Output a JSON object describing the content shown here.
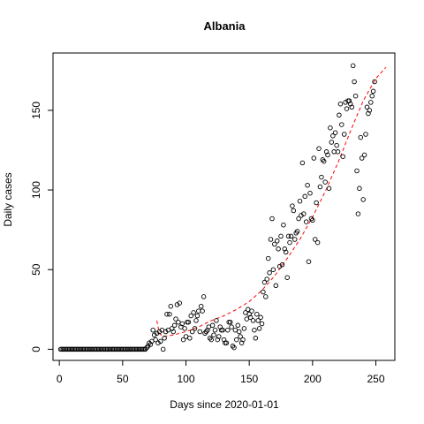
{
  "chart_data": {
    "type": "scatter",
    "title": "Albania",
    "xlabel": "Days since 2020-01-01",
    "ylabel": "Daily cases",
    "xlim": [
      -5,
      265
    ],
    "ylim": [
      -7,
      186
    ],
    "xticks": [
      0,
      50,
      100,
      150,
      200,
      250
    ],
    "yticks": [
      0,
      50,
      100,
      150
    ],
    "grid": false,
    "legend": "none",
    "point_color": "#000000",
    "trend_color": "#ff0000",
    "points": [
      [
        1,
        0
      ],
      [
        2,
        0
      ],
      [
        3,
        0
      ],
      [
        4,
        0
      ],
      [
        5,
        0
      ],
      [
        6,
        0
      ],
      [
        7,
        0
      ],
      [
        8,
        0
      ],
      [
        9,
        0
      ],
      [
        10,
        0
      ],
      [
        11,
        0
      ],
      [
        12,
        0
      ],
      [
        13,
        0
      ],
      [
        14,
        0
      ],
      [
        15,
        0
      ],
      [
        16,
        0
      ],
      [
        17,
        0
      ],
      [
        18,
        0
      ],
      [
        19,
        0
      ],
      [
        20,
        0
      ],
      [
        21,
        0
      ],
      [
        22,
        0
      ],
      [
        23,
        0
      ],
      [
        24,
        0
      ],
      [
        25,
        0
      ],
      [
        26,
        0
      ],
      [
        27,
        0
      ],
      [
        28,
        0
      ],
      [
        29,
        0
      ],
      [
        30,
        0
      ],
      [
        31,
        0
      ],
      [
        32,
        0
      ],
      [
        33,
        0
      ],
      [
        34,
        0
      ],
      [
        35,
        0
      ],
      [
        36,
        0
      ],
      [
        37,
        0
      ],
      [
        38,
        0
      ],
      [
        39,
        0
      ],
      [
        40,
        0
      ],
      [
        41,
        0
      ],
      [
        42,
        0
      ],
      [
        43,
        0
      ],
      [
        44,
        0
      ],
      [
        45,
        0
      ],
      [
        46,
        0
      ],
      [
        47,
        0
      ],
      [
        48,
        0
      ],
      [
        49,
        0
      ],
      [
        50,
        0
      ],
      [
        51,
        0
      ],
      [
        52,
        0
      ],
      [
        53,
        0
      ],
      [
        54,
        0
      ],
      [
        55,
        0
      ],
      [
        56,
        0
      ],
      [
        57,
        0
      ],
      [
        58,
        0
      ],
      [
        59,
        0
      ],
      [
        60,
        0
      ],
      [
        61,
        0
      ],
      [
        62,
        0
      ],
      [
        63,
        0
      ],
      [
        64,
        0
      ],
      [
        65,
        0
      ],
      [
        66,
        0
      ],
      [
        67,
        0
      ],
      [
        68,
        0
      ],
      [
        69,
        1
      ],
      [
        70,
        2
      ],
      [
        71,
        4
      ],
      [
        72,
        3
      ],
      [
        73,
        5
      ],
      [
        74,
        12
      ],
      [
        75,
        9
      ],
      [
        76,
        6
      ],
      [
        77,
        10
      ],
      [
        78,
        4
      ],
      [
        79,
        11
      ],
      [
        80,
        5
      ],
      [
        81,
        12
      ],
      [
        82,
        0
      ],
      [
        83,
        7
      ],
      [
        84,
        11
      ],
      [
        85,
        22
      ],
      [
        86,
        12
      ],
      [
        87,
        22
      ],
      [
        88,
        27
      ],
      [
        89,
        13
      ],
      [
        90,
        11
      ],
      [
        91,
        15
      ],
      [
        92,
        19
      ],
      [
        93,
        28
      ],
      [
        94,
        17
      ],
      [
        95,
        29
      ],
      [
        96,
        14
      ],
      [
        97,
        16
      ],
      [
        98,
        6
      ],
      [
        99,
        13
      ],
      [
        100,
        8
      ],
      [
        101,
        17
      ],
      [
        102,
        17
      ],
      [
        103,
        7
      ],
      [
        104,
        21
      ],
      [
        105,
        11
      ],
      [
        106,
        23
      ],
      [
        107,
        13
      ],
      [
        108,
        18
      ],
      [
        109,
        21
      ],
      [
        110,
        24
      ],
      [
        111,
        11
      ],
      [
        112,
        27
      ],
      [
        113,
        24
      ],
      [
        114,
        33
      ],
      [
        115,
        10
      ],
      [
        116,
        11
      ],
      [
        117,
        12
      ],
      [
        118,
        14
      ],
      [
        119,
        7
      ],
      [
        120,
        6
      ],
      [
        121,
        15
      ],
      [
        122,
        9
      ],
      [
        123,
        12
      ],
      [
        124,
        18
      ],
      [
        125,
        6
      ],
      [
        126,
        8
      ],
      [
        127,
        14
      ],
      [
        128,
        12
      ],
      [
        129,
        12
      ],
      [
        130,
        6
      ],
      [
        131,
        4
      ],
      [
        132,
        4
      ],
      [
        133,
        12
      ],
      [
        134,
        17
      ],
      [
        135,
        17
      ],
      [
        136,
        14
      ],
      [
        137,
        2
      ],
      [
        138,
        1
      ],
      [
        139,
        12
      ],
      [
        140,
        6
      ],
      [
        141,
        15
      ],
      [
        142,
        11
      ],
      [
        143,
        8
      ],
      [
        144,
        4
      ],
      [
        145,
        6
      ],
      [
        146,
        13
      ],
      [
        147,
        23
      ],
      [
        148,
        19
      ],
      [
        149,
        25
      ],
      [
        150,
        22
      ],
      [
        151,
        20
      ],
      [
        152,
        24
      ],
      [
        153,
        18
      ],
      [
        154,
        12
      ],
      [
        155,
        7
      ],
      [
        156,
        22
      ],
      [
        157,
        18
      ],
      [
        158,
        13
      ],
      [
        159,
        20
      ],
      [
        160,
        16
      ],
      [
        161,
        36
      ],
      [
        162,
        42
      ],
      [
        163,
        33
      ],
      [
        164,
        44
      ],
      [
        165,
        57
      ],
      [
        166,
        48
      ],
      [
        167,
        69
      ],
      [
        168,
        82
      ],
      [
        169,
        50
      ],
      [
        170,
        66
      ],
      [
        171,
        40
      ],
      [
        172,
        68
      ],
      [
        173,
        63
      ],
      [
        174,
        52
      ],
      [
        175,
        71
      ],
      [
        176,
        53
      ],
      [
        177,
        78
      ],
      [
        178,
        63
      ],
      [
        179,
        61
      ],
      [
        180,
        45
      ],
      [
        181,
        71
      ],
      [
        182,
        67
      ],
      [
        183,
        71
      ],
      [
        184,
        90
      ],
      [
        185,
        87
      ],
      [
        186,
        69
      ],
      [
        187,
        73
      ],
      [
        188,
        74
      ],
      [
        189,
        82
      ],
      [
        190,
        93
      ],
      [
        191,
        84
      ],
      [
        192,
        117
      ],
      [
        193,
        85
      ],
      [
        194,
        96
      ],
      [
        195,
        80
      ],
      [
        196,
        103
      ],
      [
        197,
        55
      ],
      [
        198,
        98
      ],
      [
        199,
        82
      ],
      [
        200,
        81
      ],
      [
        201,
        120
      ],
      [
        202,
        69
      ],
      [
        203,
        92
      ],
      [
        204,
        67
      ],
      [
        205,
        126
      ],
      [
        206,
        102
      ],
      [
        207,
        108
      ],
      [
        208,
        119
      ],
      [
        209,
        118
      ],
      [
        210,
        105
      ],
      [
        211,
        124
      ],
      [
        212,
        122
      ],
      [
        213,
        101
      ],
      [
        214,
        139
      ],
      [
        215,
        130
      ],
      [
        216,
        134
      ],
      [
        217,
        124
      ],
      [
        218,
        136
      ],
      [
        219,
        128
      ],
      [
        220,
        124
      ],
      [
        221,
        147
      ],
      [
        222,
        154
      ],
      [
        223,
        141
      ],
      [
        224,
        121
      ],
      [
        225,
        135
      ],
      [
        226,
        155
      ],
      [
        227,
        151
      ],
      [
        228,
        156
      ],
      [
        229,
        156
      ],
      [
        230,
        154
      ],
      [
        231,
        152
      ],
      [
        232,
        178
      ],
      [
        233,
        168
      ],
      [
        234,
        159
      ],
      [
        235,
        112
      ],
      [
        236,
        85
      ],
      [
        237,
        101
      ],
      [
        238,
        133
      ],
      [
        239,
        120
      ],
      [
        240,
        94
      ],
      [
        241,
        122
      ],
      [
        242,
        135
      ],
      [
        243,
        152
      ],
      [
        244,
        148
      ],
      [
        245,
        150
      ],
      [
        246,
        155
      ],
      [
        247,
        159
      ],
      [
        248,
        162
      ],
      [
        249,
        168
      ]
    ],
    "trend": [
      [
        77,
        18
      ],
      [
        79,
        10
      ],
      [
        82,
        8
      ],
      [
        90,
        9
      ],
      [
        100,
        11
      ],
      [
        110,
        14
      ],
      [
        120,
        18
      ],
      [
        130,
        21
      ],
      [
        140,
        25
      ],
      [
        150,
        30
      ],
      [
        160,
        37
      ],
      [
        170,
        46
      ],
      [
        180,
        57
      ],
      [
        190,
        69
      ],
      [
        200,
        83
      ],
      [
        210,
        99
      ],
      [
        220,
        117
      ],
      [
        230,
        137
      ],
      [
        240,
        156
      ],
      [
        250,
        170
      ],
      [
        258,
        177
      ]
    ]
  }
}
